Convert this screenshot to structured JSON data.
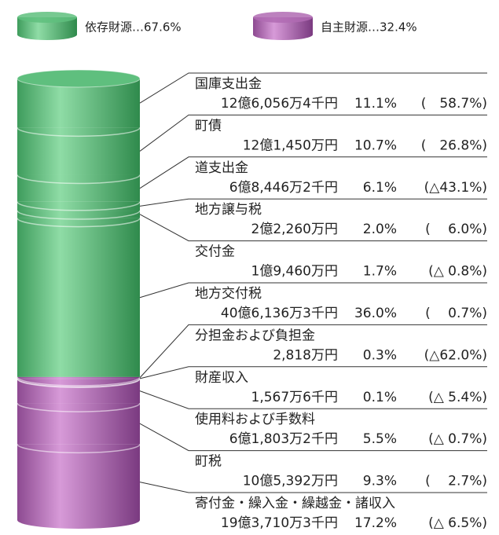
{
  "chart_data": {
    "type": "bar",
    "legend": [
      {
        "label": "依存財源…67.6%",
        "color": "#5fbf7e"
      },
      {
        "label": "自主財源…32.4%",
        "color": "#b06bb3"
      }
    ],
    "categories": [
      "国庫支出金",
      "町債",
      "道支出金",
      "地方譲与税",
      "交付金",
      "地方交付税",
      "分担金および負担金",
      "財産収入",
      "使用料および手数料",
      "町税",
      "寄付金・繰入金・繰越金・諸収入"
    ],
    "values": [
      11.1,
      10.7,
      6.1,
      2.0,
      1.7,
      36.0,
      0.3,
      0.1,
      5.5,
      9.3,
      17.2
    ],
    "value_labels": [
      "11.1%",
      "10.7%",
      "6.1%",
      "2.0%",
      "1.7%",
      "36.0%",
      "0.3%",
      "0.1%",
      "5.5%",
      "9.3%",
      "17.2%"
    ],
    "amounts": [
      "12億6,056万4千円",
      "12億1,450万円",
      "6億8,446万2千円",
      "2億2,260万円",
      "1億9,460万円",
      "40億6,136万3千円",
      "2,818万円",
      "1,567万6千円",
      "6億1,803万2千円",
      "10億5,392万円",
      "19億3,710万3千円"
    ],
    "changes": [
      "(　58.7%)",
      "(　26.8%)",
      "(△43.1%)",
      "(　 6.0%)",
      "(△ 0.8%)",
      "(　 0.7%)",
      "(△62.0%)",
      "(△ 5.4%)",
      "(△ 0.7%)",
      "(　 2.7%)",
      "(△ 6.5%)"
    ],
    "groups": [
      0,
      0,
      0,
      0,
      0,
      0,
      1,
      1,
      1,
      1,
      1
    ],
    "ylim": [
      0,
      100
    ]
  }
}
